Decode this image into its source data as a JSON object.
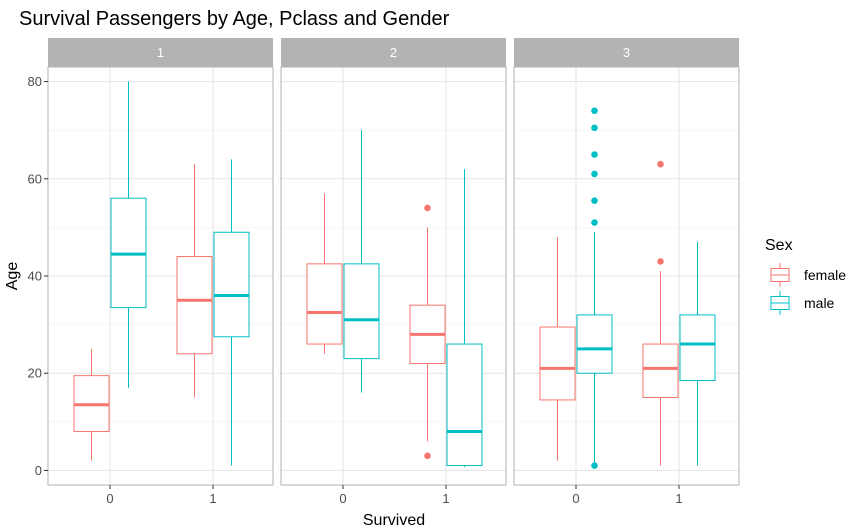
{
  "chart_data": {
    "type": "boxplot",
    "title": "Survival Passengers by Age, Pclass and Gender",
    "xlabel": "Survived",
    "ylabel": "Age",
    "ylim": [
      -3,
      83
    ],
    "yticks": [
      0,
      20,
      40,
      60,
      80
    ],
    "categories": [
      "0",
      "1"
    ],
    "facets": [
      "1",
      "2",
      "3"
    ],
    "legend": {
      "title": "Sex",
      "placement": "right",
      "entries": [
        {
          "name": "female",
          "color": "#F8766D"
        },
        {
          "name": "male",
          "color": "#00BFC4"
        }
      ]
    },
    "panels": [
      {
        "facet": "1",
        "boxes": [
          {
            "survived": "0",
            "sex": "female",
            "whisker_low": 2,
            "q1": 8,
            "median": 13.5,
            "q3": 19.5,
            "whisker_high": 25,
            "outliers": []
          },
          {
            "survived": "0",
            "sex": "male",
            "whisker_low": 17,
            "q1": 33.5,
            "median": 44.5,
            "q3": 56,
            "whisker_high": 80,
            "outliers": []
          },
          {
            "survived": "1",
            "sex": "female",
            "whisker_low": 15,
            "q1": 24,
            "median": 35,
            "q3": 44,
            "whisker_high": 63,
            "outliers": []
          },
          {
            "survived": "1",
            "sex": "male",
            "whisker_low": 1,
            "q1": 27.5,
            "median": 36,
            "q3": 49,
            "whisker_high": 64,
            "outliers": []
          }
        ]
      },
      {
        "facet": "2",
        "boxes": [
          {
            "survived": "0",
            "sex": "female",
            "whisker_low": 24,
            "q1": 26,
            "median": 32.5,
            "q3": 42.5,
            "whisker_high": 57,
            "outliers": []
          },
          {
            "survived": "0",
            "sex": "male",
            "whisker_low": 16,
            "q1": 23,
            "median": 31,
            "q3": 42.5,
            "whisker_high": 70,
            "outliers": []
          },
          {
            "survived": "1",
            "sex": "female",
            "whisker_low": 6,
            "q1": 22,
            "median": 28,
            "q3": 34,
            "whisker_high": 50,
            "outliers": [
              3,
              54
            ]
          },
          {
            "survived": "1",
            "sex": "male",
            "whisker_low": 0.67,
            "q1": 1,
            "median": 8,
            "q3": 26,
            "whisker_high": 62,
            "outliers": []
          }
        ]
      },
      {
        "facet": "3",
        "boxes": [
          {
            "survived": "0",
            "sex": "female",
            "whisker_low": 2,
            "q1": 14.5,
            "median": 21,
            "q3": 29.5,
            "whisker_high": 48,
            "outliers": []
          },
          {
            "survived": "0",
            "sex": "male",
            "whisker_low": 1.5,
            "q1": 20,
            "median": 25,
            "q3": 32,
            "whisker_high": 49,
            "outliers": [
              1,
              51,
              55.5,
              61,
              65,
              70.5,
              74
            ]
          },
          {
            "survived": "1",
            "sex": "female",
            "whisker_low": 1,
            "q1": 15,
            "median": 21,
            "q3": 26,
            "whisker_high": 41,
            "outliers": [
              43,
              63
            ]
          },
          {
            "survived": "1",
            "sex": "male",
            "whisker_low": 1,
            "q1": 18.5,
            "median": 26,
            "q3": 32,
            "whisker_high": 47,
            "outliers": []
          }
        ]
      }
    ]
  }
}
